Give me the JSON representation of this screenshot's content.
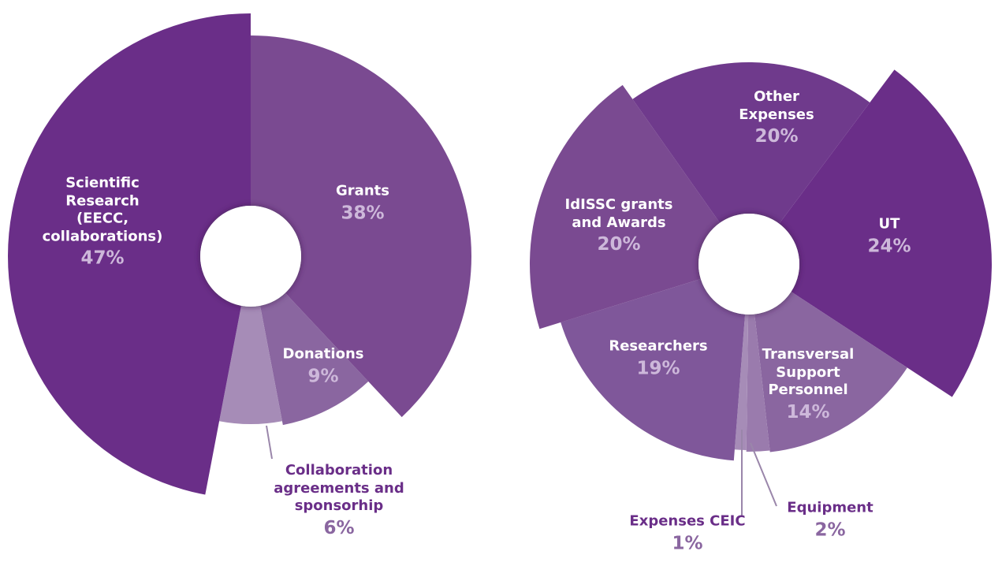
{
  "chart_data": [
    {
      "type": "pie",
      "categories": [
        "Grants",
        "Donations",
        "Collaboration agreements and sponsorhip",
        "Scientific Research (EECC, collaborations)"
      ],
      "values": [
        38,
        9,
        6,
        47
      ],
      "value_labels": [
        "38%",
        "9%",
        "6%",
        "47%"
      ],
      "colors": [
        "#7a4a91",
        "#8a66a0",
        "#a68cb7",
        "#6a2e88"
      ]
    },
    {
      "type": "pie",
      "categories": [
        "UT",
        "Transversal Support Personnel",
        "Equipment",
        "Expenses CEIC",
        "Researchers",
        "IdISSC grants and Awards",
        "Other Expenses"
      ],
      "values": [
        24,
        14,
        2,
        1,
        19,
        20,
        20
      ],
      "value_labels": [
        "24%",
        "14%",
        "2%",
        "1%",
        "19%",
        "20%",
        "20%"
      ],
      "colors": [
        "#6a2e88",
        "#8a66a0",
        "#9a7bad",
        "#a68cb7",
        "#7f579a",
        "#7a4a91",
        "#6f3a8c"
      ]
    }
  ]
}
